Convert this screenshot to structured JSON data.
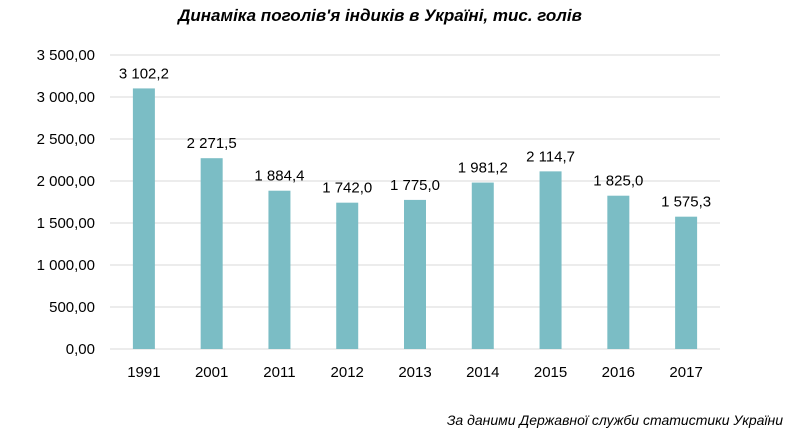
{
  "chart_data": {
    "type": "bar",
    "title": "Динаміка поголів'я індиків в Україні, тис. голів",
    "categories": [
      "1991",
      "2001",
      "2011",
      "2012",
      "2013",
      "2014",
      "2015",
      "2016",
      "2017"
    ],
    "values": [
      3102.2,
      2271.5,
      1884.4,
      1742.0,
      1775.0,
      1981.2,
      2114.7,
      1825.0,
      1575.3
    ],
    "data_labels": [
      "3 102,2",
      "2 271,5",
      "1 884,4",
      "1 742,0",
      "1 775,0",
      "1 981,2",
      "2 114,7",
      "1 825,0",
      "1 575,3"
    ],
    "ylim": [
      0,
      3500
    ],
    "yticks": [
      0,
      500,
      1000,
      1500,
      2000,
      2500,
      3000,
      3500
    ],
    "ytick_labels": [
      "0,00",
      "500,00",
      "1 000,00",
      "1 500,00",
      "2 000,00",
      "2 500,00",
      "3 000,00",
      "3 500,00"
    ],
    "grid": true,
    "bar_color": "#7BBDC5",
    "grid_color": "#D9D9D9"
  },
  "source_note": "За даними Державної служби статистики України"
}
